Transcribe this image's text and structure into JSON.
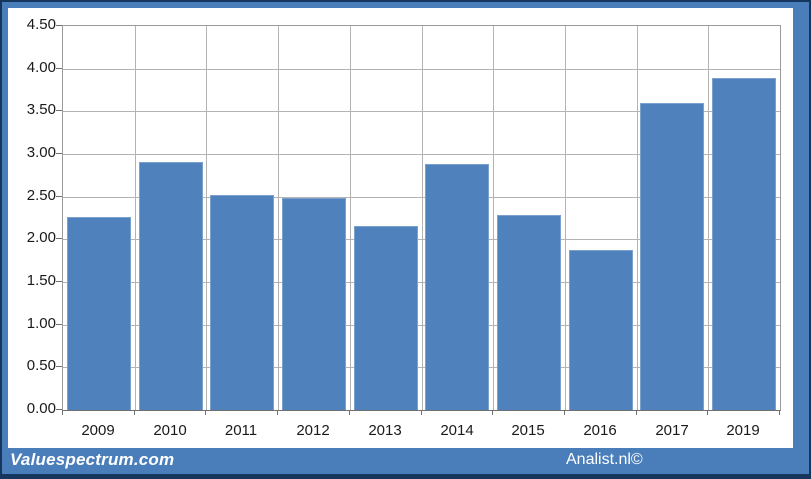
{
  "chart_data": {
    "type": "bar",
    "title": "",
    "xlabel": "",
    "ylabel": "",
    "categories": [
      "2009",
      "2010",
      "2011",
      "2012",
      "2013",
      "2014",
      "2015",
      "2016",
      "2017",
      "2019"
    ],
    "values": [
      2.26,
      2.91,
      2.52,
      2.48,
      2.16,
      2.88,
      2.28,
      1.87,
      3.6,
      3.89
    ],
    "ylim": [
      0,
      4.5
    ],
    "ytick_step": 0.5,
    "ytick_labels": [
      "0.00",
      "0.50",
      "1.00",
      "1.50",
      "2.00",
      "2.50",
      "3.00",
      "3.50",
      "4.00",
      "4.50"
    ],
    "grid": true,
    "vertical_category_gridlines": true,
    "legend_position": "none",
    "bar_color": "#4f81bd",
    "bar_border_color": "#7ba0cd",
    "gridline_color": "#b3b3b3",
    "plot_border_color": "#9a9a9a"
  },
  "footer": {
    "left_text": "Valuespectrum.com",
    "right_text": "Analist.nl©",
    "background_color": "#4a7ebb",
    "edge_color": "#17365d",
    "text_color": "#ffffff"
  },
  "frame": {
    "border_color": "#4a7ebb",
    "outer_edge_color": "#17365d",
    "panel_color": "#ffffff"
  }
}
